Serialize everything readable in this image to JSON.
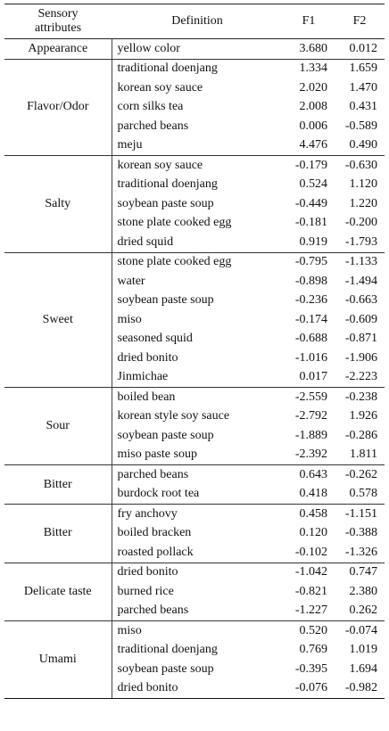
{
  "headers": {
    "attribute_line1": "Sensory",
    "attribute_line2": "attributes",
    "definition": "Definition",
    "f1": "F1",
    "f2": "F2"
  },
  "groups": [
    {
      "attribute": "Appearance",
      "rows": [
        {
          "definition": "yellow color",
          "f1": "3.680",
          "f2": "0.012"
        }
      ]
    },
    {
      "attribute": "Flavor/Odor",
      "rows": [
        {
          "definition": "traditional doenjang",
          "f1": "1.334",
          "f2": "1.659"
        },
        {
          "definition": "korean soy sauce",
          "f1": "2.020",
          "f2": "1.470"
        },
        {
          "definition": "corn silks tea",
          "f1": "2.008",
          "f2": "0.431"
        },
        {
          "definition": "parched beans",
          "f1": "0.006",
          "f2": "-0.589"
        },
        {
          "definition": "meju",
          "f1": "4.476",
          "f2": "0.490"
        }
      ]
    },
    {
      "attribute": "Salty",
      "rows": [
        {
          "definition": "korean soy sauce",
          "f1": "-0.179",
          "f2": "-0.630"
        },
        {
          "definition": "traditional doenjang",
          "f1": "0.524",
          "f2": "1.120"
        },
        {
          "definition": "soybean paste soup",
          "f1": "-0.449",
          "f2": "1.220"
        },
        {
          "definition": "stone plate cooked egg",
          "f1": "-0.181",
          "f2": "-0.200"
        },
        {
          "definition": "dried squid",
          "f1": "0.919",
          "f2": "-1.793"
        }
      ]
    },
    {
      "attribute": "Sweet",
      "rows": [
        {
          "definition": "stone plate cooked egg",
          "f1": "-0.795",
          "f2": "-1.133"
        },
        {
          "definition": "water",
          "f1": "-0.898",
          "f2": "-1.494"
        },
        {
          "definition": "soybean paste soup",
          "f1": "-0.236",
          "f2": "-0.663"
        },
        {
          "definition": "miso",
          "f1": "-0.174",
          "f2": "-0.609"
        },
        {
          "definition": "seasoned squid",
          "f1": "-0.688",
          "f2": "-0.871"
        },
        {
          "definition": "dried bonito",
          "f1": "-1.016",
          "f2": "-1.906"
        },
        {
          "definition": "Jinmichae",
          "f1": "0.017",
          "f2": "-2.223"
        }
      ]
    },
    {
      "attribute": "Sour",
      "rows": [
        {
          "definition": "boiled bean",
          "f1": "-2.559",
          "f2": "-0.238"
        },
        {
          "definition": "korean style soy sauce",
          "f1": "-2.792",
          "f2": "1.926"
        },
        {
          "definition": "soybean paste soup",
          "f1": "-1.889",
          "f2": "-0.286"
        },
        {
          "definition": "miso paste soup",
          "f1": "-2.392",
          "f2": "1.811"
        }
      ]
    },
    {
      "attribute": "Bitter",
      "rows": [
        {
          "definition": "parched beans",
          "f1": "0.643",
          "f2": "-0.262"
        },
        {
          "definition": "burdock root tea",
          "f1": "0.418",
          "f2": "0.578"
        }
      ]
    },
    {
      "attribute": "Bitter",
      "rows": [
        {
          "definition": "fry anchovy",
          "f1": "0.458",
          "f2": "-1.151"
        },
        {
          "definition": "boiled bracken",
          "f1": "0.120",
          "f2": "-0.388"
        },
        {
          "definition": "roasted pollack",
          "f1": "-0.102",
          "f2": "-1.326"
        }
      ]
    },
    {
      "attribute": "Delicate taste",
      "rows": [
        {
          "definition": "dried bonito",
          "f1": "-1.042",
          "f2": "0.747"
        },
        {
          "definition": "burned rice",
          "f1": "-0.821",
          "f2": "2.380"
        },
        {
          "definition": "parched beans",
          "f1": "-1.227",
          "f2": "0.262"
        }
      ]
    },
    {
      "attribute": "Umami",
      "rows": [
        {
          "definition": "miso",
          "f1": "0.520",
          "f2": "-0.074"
        },
        {
          "definition": "traditional doenjang",
          "f1": "0.769",
          "f2": "1.019"
        },
        {
          "definition": "soybean paste soup",
          "f1": "-0.395",
          "f2": "1.694"
        },
        {
          "definition": "dried bonito",
          "f1": "-0.076",
          "f2": "-0.982"
        }
      ]
    }
  ]
}
